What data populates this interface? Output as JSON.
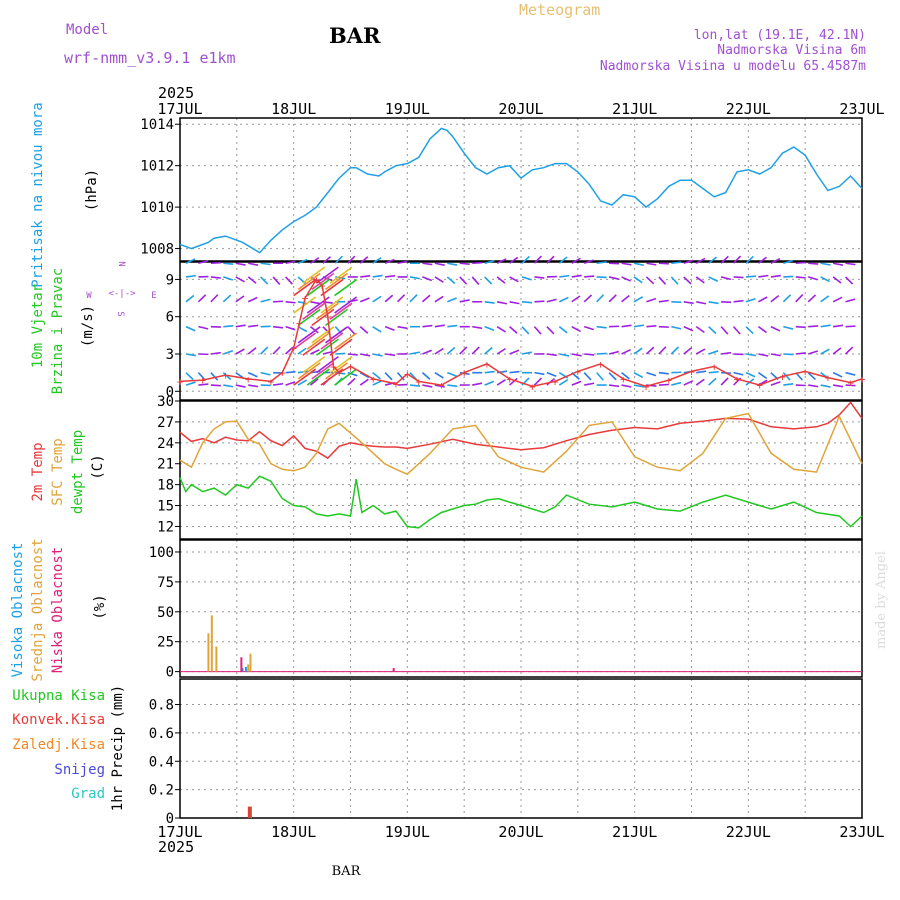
{
  "header": {
    "model_label": "Model",
    "model_name": "wrf-nmm_v3.9.1 e1km",
    "station": "BAR",
    "title": "Meteogram",
    "location": "lon,lat (19.1E, 42.1N)",
    "elevation": "Nadmorska Visina 6m",
    "model_elevation": "Nadmorska Visina u modelu 65.4587m"
  },
  "time_axis": {
    "year": "2025",
    "labels": [
      "17JUL",
      "18JUL",
      "19JUL",
      "20JUL",
      "21JUL",
      "22JUL",
      "23JUL"
    ]
  },
  "footer": {
    "station": "BAR",
    "watermark": "made by Angel"
  },
  "wind_compass": {
    "north": "N",
    "south": "S",
    "east": "E",
    "west": "W"
  },
  "colors": {
    "pressure": "#1ea0e6",
    "temp2m": "#e83a3a",
    "sfc_temp": "#e0a43a",
    "dewpoint": "#22c822",
    "high_cloud": "#1ea0e6",
    "mid_cloud": "#e0a43a",
    "low_cloud": "#e0207a",
    "total_precip": "#22c822",
    "conv_precip": "#e83a3a",
    "frozen_precip": "#f08a2a",
    "snow": "#4a4adc",
    "graupel": "#2ac8c0",
    "wind_speed": "#e83a3a",
    "model_label": "#a050d0",
    "title": "#e8c070",
    "grid": "#999999"
  },
  "chart_data": [
    {
      "type": "line",
      "panel": "pressure",
      "ylabel": "Pritisak na nivou mora",
      "unit": "(hPa)",
      "yticks": [
        1008,
        1010,
        1012,
        1014
      ],
      "ylim": [
        1007.4,
        1014.3
      ],
      "x_unit": "days since 17JUL 00UTC",
      "xlim": [
        0,
        6
      ],
      "series": [
        {
          "x": [
            0,
            0.1,
            0.15,
            0.25,
            0.3,
            0.4,
            0.55,
            0.7,
            0.8,
            0.9,
            1.0,
            1.1,
            1.2,
            1.3,
            1.4,
            1.5,
            1.55,
            1.65,
            1.75,
            1.8,
            1.9,
            2.0,
            2.1,
            2.2,
            2.3,
            2.35,
            2.4,
            2.5,
            2.6,
            2.7,
            2.8,
            2.9,
            3.0,
            3.1,
            3.2,
            3.3,
            3.4,
            3.5,
            3.6,
            3.7,
            3.8,
            3.9,
            4.0,
            4.1,
            4.2,
            4.3,
            4.4,
            4.5,
            4.6,
            4.7,
            4.8,
            4.9,
            5.0,
            5.1,
            5.2,
            5.3,
            5.4,
            5.5,
            5.6,
            5.7,
            5.8,
            5.9,
            6.0
          ],
          "values": [
            1008.2,
            1008.0,
            1008.1,
            1008.3,
            1008.5,
            1008.6,
            1008.3,
            1007.8,
            1008.4,
            1008.9,
            1009.3,
            1009.6,
            1010.0,
            1010.7,
            1011.4,
            1011.9,
            1011.9,
            1011.6,
            1011.5,
            1011.7,
            1012.0,
            1012.1,
            1012.4,
            1013.3,
            1013.8,
            1013.7,
            1013.4,
            1012.6,
            1011.9,
            1011.6,
            1011.9,
            1012.0,
            1011.4,
            1011.8,
            1011.9,
            1012.1,
            1012.1,
            1011.7,
            1011.1,
            1010.3,
            1010.1,
            1010.6,
            1010.5,
            1010.0,
            1010.4,
            1011.0,
            1011.3,
            1011.3,
            1010.9,
            1010.5,
            1010.7,
            1011.7,
            1011.8,
            1011.6,
            1011.9,
            1012.6,
            1012.9,
            1012.5,
            1011.6,
            1010.8,
            1011.0,
            1011.5,
            1010.9
          ]
        }
      ]
    },
    {
      "type": "line",
      "panel": "wind",
      "ylabel": "10m Vjetar",
      "ylabel2": "Brzina i Pravac",
      "unit": "(m/s)",
      "yticks": [
        0,
        3,
        6,
        9
      ],
      "ylim": [
        -0.7,
        10.4
      ],
      "xlim": [
        0,
        6
      ],
      "series": [
        {
          "x": [
            0,
            0.2,
            0.4,
            0.6,
            0.8,
            0.9,
            1.0,
            1.05,
            1.1,
            1.2,
            1.25,
            1.3,
            1.35,
            1.4,
            1.5,
            1.7,
            1.9,
            2.0,
            2.1,
            2.3,
            2.5,
            2.7,
            2.9,
            3.1,
            3.3,
            3.5,
            3.7,
            3.9,
            4.1,
            4.3,
            4.5,
            4.7,
            4.9,
            5.1,
            5.3,
            5.5,
            5.7,
            5.9,
            6.0
          ],
          "values": [
            0.8,
            0.9,
            1.3,
            1.0,
            0.8,
            1.5,
            3.5,
            5.5,
            7.5,
            9.0,
            8.5,
            6.0,
            2.0,
            1.5,
            2.0,
            1.0,
            0.6,
            1.4,
            0.8,
            0.5,
            1.5,
            2.2,
            1.0,
            0.4,
            0.8,
            1.6,
            2.2,
            1.0,
            0.4,
            0.9,
            1.6,
            2.0,
            1.0,
            0.5,
            1.2,
            1.6,
            1.1,
            0.7,
            1.0
          ]
        }
      ]
    },
    {
      "type": "line",
      "panel": "temperature",
      "ylabel": "2m Temp",
      "ylabel2": "SFC Temp",
      "ylabel3": "dewpt Temp",
      "unit": "(C)",
      "yticks": [
        12,
        15,
        18,
        21,
        24,
        27,
        30
      ],
      "ylim": [
        10.2,
        30
      ],
      "xlim": [
        0,
        6
      ],
      "series": [
        {
          "name": "2m Temp",
          "x": [
            0,
            0.1,
            0.2,
            0.3,
            0.4,
            0.5,
            0.6,
            0.7,
            0.8,
            0.9,
            1.0,
            1.1,
            1.2,
            1.3,
            1.4,
            1.5,
            1.6,
            1.7,
            1.8,
            1.9,
            2.0,
            2.2,
            2.4,
            2.6,
            2.8,
            3.0,
            3.2,
            3.4,
            3.6,
            3.8,
            4.0,
            4.2,
            4.4,
            4.6,
            4.8,
            5.0,
            5.2,
            5.4,
            5.6,
            5.7,
            5.8,
            5.9,
            6.0
          ],
          "values": [
            25.5,
            24.2,
            24.6,
            24.0,
            24.8,
            24.4,
            24.3,
            25.6,
            24.3,
            23.6,
            25.0,
            23.2,
            22.8,
            21.8,
            23.5,
            24.0,
            23.7,
            23.5,
            23.4,
            23.4,
            23.2,
            23.8,
            24.5,
            23.8,
            23.4,
            23.0,
            23.3,
            24.3,
            25.2,
            25.8,
            26.2,
            26.0,
            26.8,
            27.1,
            27.5,
            27.4,
            26.3,
            26.0,
            26.3,
            26.8,
            28.0,
            29.8,
            27.5
          ]
        },
        {
          "name": "SFC Temp",
          "x": [
            0,
            0.1,
            0.2,
            0.3,
            0.4,
            0.5,
            0.6,
            0.7,
            0.8,
            0.9,
            1.0,
            1.1,
            1.2,
            1.3,
            1.4,
            1.6,
            1.8,
            1.9,
            2.0,
            2.2,
            2.4,
            2.6,
            2.8,
            3.0,
            3.2,
            3.4,
            3.6,
            3.8,
            4.0,
            4.2,
            4.4,
            4.6,
            4.8,
            5.0,
            5.2,
            5.4,
            5.6,
            5.8,
            6.0
          ],
          "values": [
            21.5,
            20.5,
            24.0,
            26.0,
            27.0,
            27.1,
            24.5,
            23.8,
            21.0,
            20.2,
            20.0,
            20.5,
            22.5,
            26.0,
            26.8,
            24.0,
            21.0,
            20.2,
            19.5,
            22.5,
            26.0,
            26.5,
            22.0,
            20.5,
            19.8,
            22.8,
            26.5,
            27.0,
            22.0,
            20.5,
            20.0,
            22.5,
            27.5,
            28.2,
            22.5,
            20.2,
            19.8,
            27.8,
            21.0
          ]
        },
        {
          "name": "dewpt Temp",
          "x": [
            0,
            0.05,
            0.1,
            0.2,
            0.3,
            0.4,
            0.5,
            0.6,
            0.7,
            0.8,
            0.9,
            1.0,
            1.1,
            1.2,
            1.3,
            1.4,
            1.5,
            1.55,
            1.6,
            1.7,
            1.8,
            1.9,
            2.0,
            2.1,
            2.2,
            2.3,
            2.4,
            2.5,
            2.6,
            2.7,
            2.8,
            2.9,
            3.0,
            3.1,
            3.2,
            3.3,
            3.4,
            3.6,
            3.8,
            4.0,
            4.2,
            4.4,
            4.6,
            4.8,
            5.0,
            5.2,
            5.4,
            5.6,
            5.8,
            5.9,
            6.0
          ],
          "values": [
            19.0,
            17.0,
            18.0,
            17.0,
            17.5,
            16.5,
            18.0,
            17.5,
            19.2,
            18.5,
            16.0,
            15.0,
            14.8,
            13.8,
            13.5,
            13.8,
            13.5,
            18.8,
            14.0,
            15.0,
            13.8,
            14.2,
            12.0,
            11.8,
            13.0,
            14.0,
            14.5,
            15.0,
            15.2,
            15.8,
            16.0,
            15.5,
            15.0,
            14.5,
            14.0,
            14.8,
            16.5,
            15.2,
            14.8,
            15.5,
            14.5,
            14.2,
            15.5,
            16.5,
            15.5,
            14.5,
            15.5,
            14.0,
            13.5,
            12.0,
            13.5
          ]
        }
      ]
    },
    {
      "type": "bar",
      "panel": "cloud",
      "ylabel": "Visoka Oblacnost",
      "ylabel2": "Srednja Oblacnost",
      "ylabel3": "Niska Oblacnost",
      "unit": "(%)",
      "yticks": [
        0,
        25,
        50,
        75,
        100
      ],
      "ylim": [
        -4.5,
        110
      ],
      "xlim": [
        0,
        6
      ],
      "series": [
        {
          "name": "Srednja Oblacnost",
          "x": [
            0.25,
            0.28,
            0.32,
            0.6,
            0.62
          ],
          "values": [
            32,
            47,
            21,
            6,
            15
          ]
        },
        {
          "name": "Visoka Oblacnost",
          "x": [
            0.55,
            0.58
          ],
          "values": [
            3,
            4
          ]
        },
        {
          "name": "Niska Oblacnost",
          "x": [
            0.54,
            1.88
          ],
          "values": [
            12,
            3
          ]
        }
      ]
    },
    {
      "type": "bar",
      "panel": "precipitation",
      "ylabel": "1hr Precip",
      "unit": "(mm)",
      "legend": [
        "Ukupna Kisa",
        "Konvek.Kisa",
        "Zaledj.Kisa",
        "Snijeg",
        "Grad"
      ],
      "yticks": [
        0,
        0.2,
        0.4,
        0.6,
        0.8
      ],
      "ylim": [
        0,
        0.98
      ],
      "xlim": [
        0,
        6
      ],
      "series": [
        {
          "name": "Ukupna Kisa",
          "x": [
            0.62
          ],
          "values": [
            0.08
          ]
        },
        {
          "name": "Konvek.Kisa",
          "x": [
            0.61
          ],
          "values": [
            0.08
          ]
        }
      ]
    }
  ]
}
